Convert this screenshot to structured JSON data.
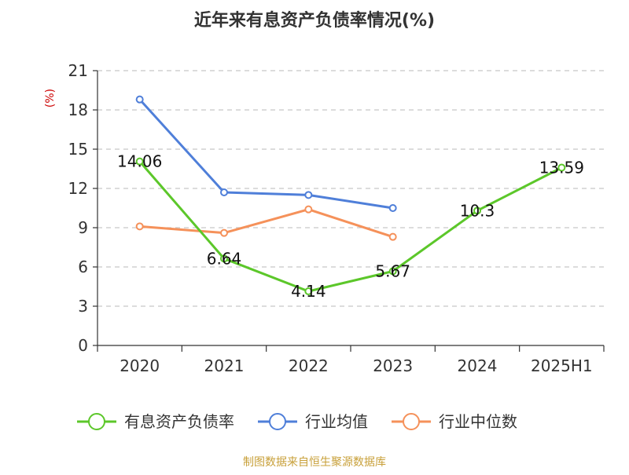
{
  "chart_data": {
    "type": "line",
    "title": "近年来有息资产负债率情况(%)",
    "ylabel": "(%)",
    "xlabel": "",
    "categories": [
      "2020",
      "2021",
      "2022",
      "2023",
      "2024",
      "2025H1"
    ],
    "ylim": [
      0,
      21
    ],
    "yticks": [
      0,
      3,
      6,
      9,
      12,
      15,
      18,
      21
    ],
    "grid": true,
    "legend_position": "bottom",
    "series": [
      {
        "name": "有息资产负债率",
        "color": "#5cc72a",
        "values": [
          14.06,
          6.64,
          4.14,
          5.67,
          10.3,
          13.59
        ],
        "labels": [
          "14.06",
          "6.64",
          "4.14",
          "5.67",
          "10.3",
          "13.59"
        ]
      },
      {
        "name": "行业均值",
        "color": "#4f7fd9",
        "values": [
          18.8,
          11.7,
          11.5,
          10.5,
          null,
          null
        ]
      },
      {
        "name": "行业中位数",
        "color": "#f5915a",
        "values": [
          9.1,
          8.6,
          10.4,
          8.3,
          null,
          null
        ]
      }
    ]
  },
  "source": "制图数据来自恒生聚源数据库"
}
